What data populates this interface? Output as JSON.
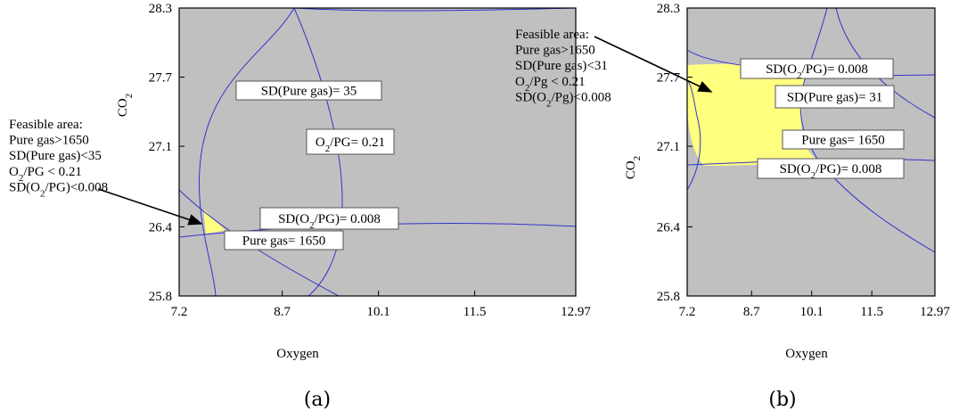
{
  "chart_data": [
    {
      "type": "contour",
      "panel_label": "(a)",
      "xlabel": "Oxygen",
      "ylabel": {
        "main": "CO",
        "sub": "2"
      },
      "xlim": [
        7.2,
        12.97
      ],
      "ylim": [
        25.8,
        28.3
      ],
      "xticks": [
        "7.2",
        "8.7",
        "10.1",
        "11.5",
        "12.97"
      ],
      "yticks": [
        "25.8",
        "26.4",
        "27.1",
        "27.7",
        "28.3"
      ],
      "plot_color": "#c0c0c0",
      "contour_color": "#3333cc",
      "feasible_color": "#ffff80",
      "contours": [
        {
          "label": "SD(Pure gas)= 35",
          "level": 35
        },
        {
          "label": "O2/PG= 0.21",
          "level": 0.21
        },
        {
          "label": "SD(O2/PG)= 0.008",
          "level": 0.008
        },
        {
          "label": "Pure gas= 1650",
          "level": 1650
        }
      ],
      "labels": [
        {
          "parts": [
            [
              "SD(Pure gas)= 35",
              ""
            ]
          ]
        },
        {
          "parts": [
            [
              "O",
              ""
            ],
            [
              "2",
              "sub"
            ],
            [
              "/PG= 0.21",
              ""
            ]
          ]
        },
        {
          "parts": [
            [
              "SD(O",
              ""
            ],
            [
              "2",
              "sub"
            ],
            [
              "/PG)= 0.008",
              ""
            ]
          ]
        },
        {
          "parts": [
            [
              "Pure gas= 1650",
              ""
            ]
          ]
        }
      ],
      "annotation": {
        "lines": [
          [
            [
              "Feasible area:",
              ""
            ]
          ],
          [
            [
              "Pure gas>1650",
              ""
            ]
          ],
          [
            [
              "SD(Pure gas)<35",
              ""
            ]
          ],
          [
            [
              "O",
              ""
            ],
            [
              "2",
              "sub"
            ],
            [
              "/PG < 0.21",
              ""
            ]
          ],
          [
            [
              "SD(O",
              ""
            ],
            [
              "2",
              "sub"
            ],
            [
              "/PG)<0.008",
              ""
            ]
          ]
        ]
      }
    },
    {
      "type": "contour",
      "panel_label": "(b)",
      "xlabel": "Oxygen",
      "ylabel": {
        "main": "CO",
        "sub": "2"
      },
      "xlim": [
        7.2,
        12.97
      ],
      "ylim": [
        25.8,
        28.3
      ],
      "xticks": [
        "7.2",
        "8.7",
        "10.1",
        "11.5",
        "12.97"
      ],
      "yticks": [
        "25.8",
        "26.4",
        "27.1",
        "27.7",
        "28.3"
      ],
      "plot_color": "#c0c0c0",
      "contour_color": "#3333cc",
      "feasible_color": "#ffff80",
      "contours": [
        {
          "label": "SD(O2/PG)= 0.008",
          "level": 0.008
        },
        {
          "label": "SD(Pure gas)= 31",
          "level": 31
        },
        {
          "label": "Pure gas= 1650",
          "level": 1650
        },
        {
          "label": "SD(O2/PG)= 0.008",
          "level": 0.008
        }
      ],
      "labels": [
        {
          "parts": [
            [
              "SD(O",
              ""
            ],
            [
              "2",
              "sub"
            ],
            [
              "/PG)= 0.008",
              ""
            ]
          ]
        },
        {
          "parts": [
            [
              "SD(Pure gas)= 31",
              ""
            ]
          ]
        },
        {
          "parts": [
            [
              "Pure gas= 1650",
              ""
            ]
          ]
        },
        {
          "parts": [
            [
              "SD(O",
              ""
            ],
            [
              "2",
              "sub"
            ],
            [
              "/PG)= 0.008",
              ""
            ]
          ]
        }
      ],
      "annotation": {
        "lines": [
          [
            [
              "Feasible area:",
              ""
            ]
          ],
          [
            [
              "Pure gas>1650",
              ""
            ]
          ],
          [
            [
              "SD(Pure gas)<31",
              ""
            ]
          ],
          [
            [
              "O",
              ""
            ],
            [
              "2",
              "sub"
            ],
            [
              "/Pg < 0.21",
              ""
            ]
          ],
          [
            [
              "SD(O",
              ""
            ],
            [
              "2",
              "sub"
            ],
            [
              "/Pg)<0.008",
              ""
            ]
          ]
        ]
      }
    }
  ]
}
